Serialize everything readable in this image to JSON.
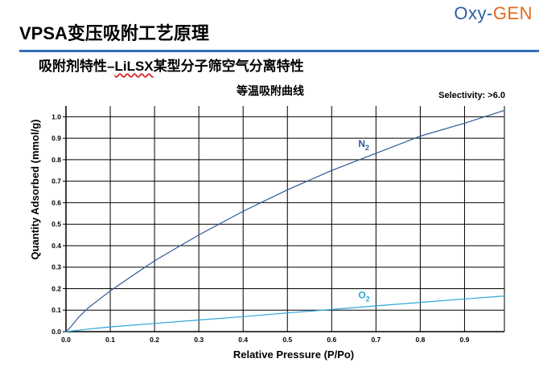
{
  "slide": {
    "title": "VPSA变压吸附工艺原理",
    "logo_a": "Oxy-",
    "logo_b": "GEN",
    "subtitle_a": "吸附剂特性–",
    "subtitle_b": "LiLSX",
    "subtitle_c": "某型分子筛空气分离特性"
  },
  "colors": {
    "title_rule": "#2f6fb8",
    "n2_line": "#2f5a96",
    "o2_line": "#2ea6d8",
    "grid": "#000000"
  },
  "chart_data": {
    "type": "line",
    "title": "等温吸附曲线",
    "annotation": "Selectivity: >6.0",
    "xlabel": "Relative Pressure (P/Po)",
    "ylabel": "Quantity Adsorbed (mmol/g)",
    "xlim": [
      0,
      0.99
    ],
    "ylim": [
      0,
      1.05
    ],
    "x_ticks": [
      0.0,
      0.1,
      0.2,
      0.3,
      0.4,
      0.5,
      0.6,
      0.7,
      0.8,
      0.9
    ],
    "x_tick_labels": [
      "0.0",
      "0.1",
      "0.2",
      "0.3",
      "0.4",
      "0.5",
      "0.6",
      "0.7",
      "0.8",
      "0.9"
    ],
    "y_ticks": [
      0.0,
      0.1,
      0.2,
      0.3,
      0.4,
      0.5,
      0.6,
      0.7,
      0.8,
      0.9,
      1.0
    ],
    "y_tick_labels": [
      "0.0",
      "0.1",
      "0.2",
      "0.3",
      "0.4",
      "0.5",
      "0.6",
      "0.7",
      "0.8",
      "0.9",
      "1.0"
    ],
    "grid": true,
    "series": [
      {
        "name": "N2",
        "label_main": "N",
        "label_sub": "2",
        "color": "#2f5a96",
        "x": [
          0.0,
          0.01,
          0.03,
          0.05,
          0.1,
          0.15,
          0.2,
          0.25,
          0.3,
          0.4,
          0.5,
          0.6,
          0.7,
          0.8,
          0.9,
          0.99
        ],
        "y": [
          0.0,
          0.02,
          0.07,
          0.11,
          0.19,
          0.26,
          0.33,
          0.39,
          0.45,
          0.56,
          0.66,
          0.75,
          0.83,
          0.91,
          0.97,
          1.03
        ]
      },
      {
        "name": "O2",
        "label_main": "O",
        "label_sub": "2",
        "color": "#2ea6d8",
        "x": [
          0.0,
          0.05,
          0.1,
          0.2,
          0.3,
          0.4,
          0.5,
          0.6,
          0.7,
          0.8,
          0.9,
          0.99
        ],
        "y": [
          0.0,
          0.012,
          0.022,
          0.038,
          0.054,
          0.07,
          0.087,
          0.103,
          0.12,
          0.136,
          0.152,
          0.166
        ]
      }
    ]
  }
}
